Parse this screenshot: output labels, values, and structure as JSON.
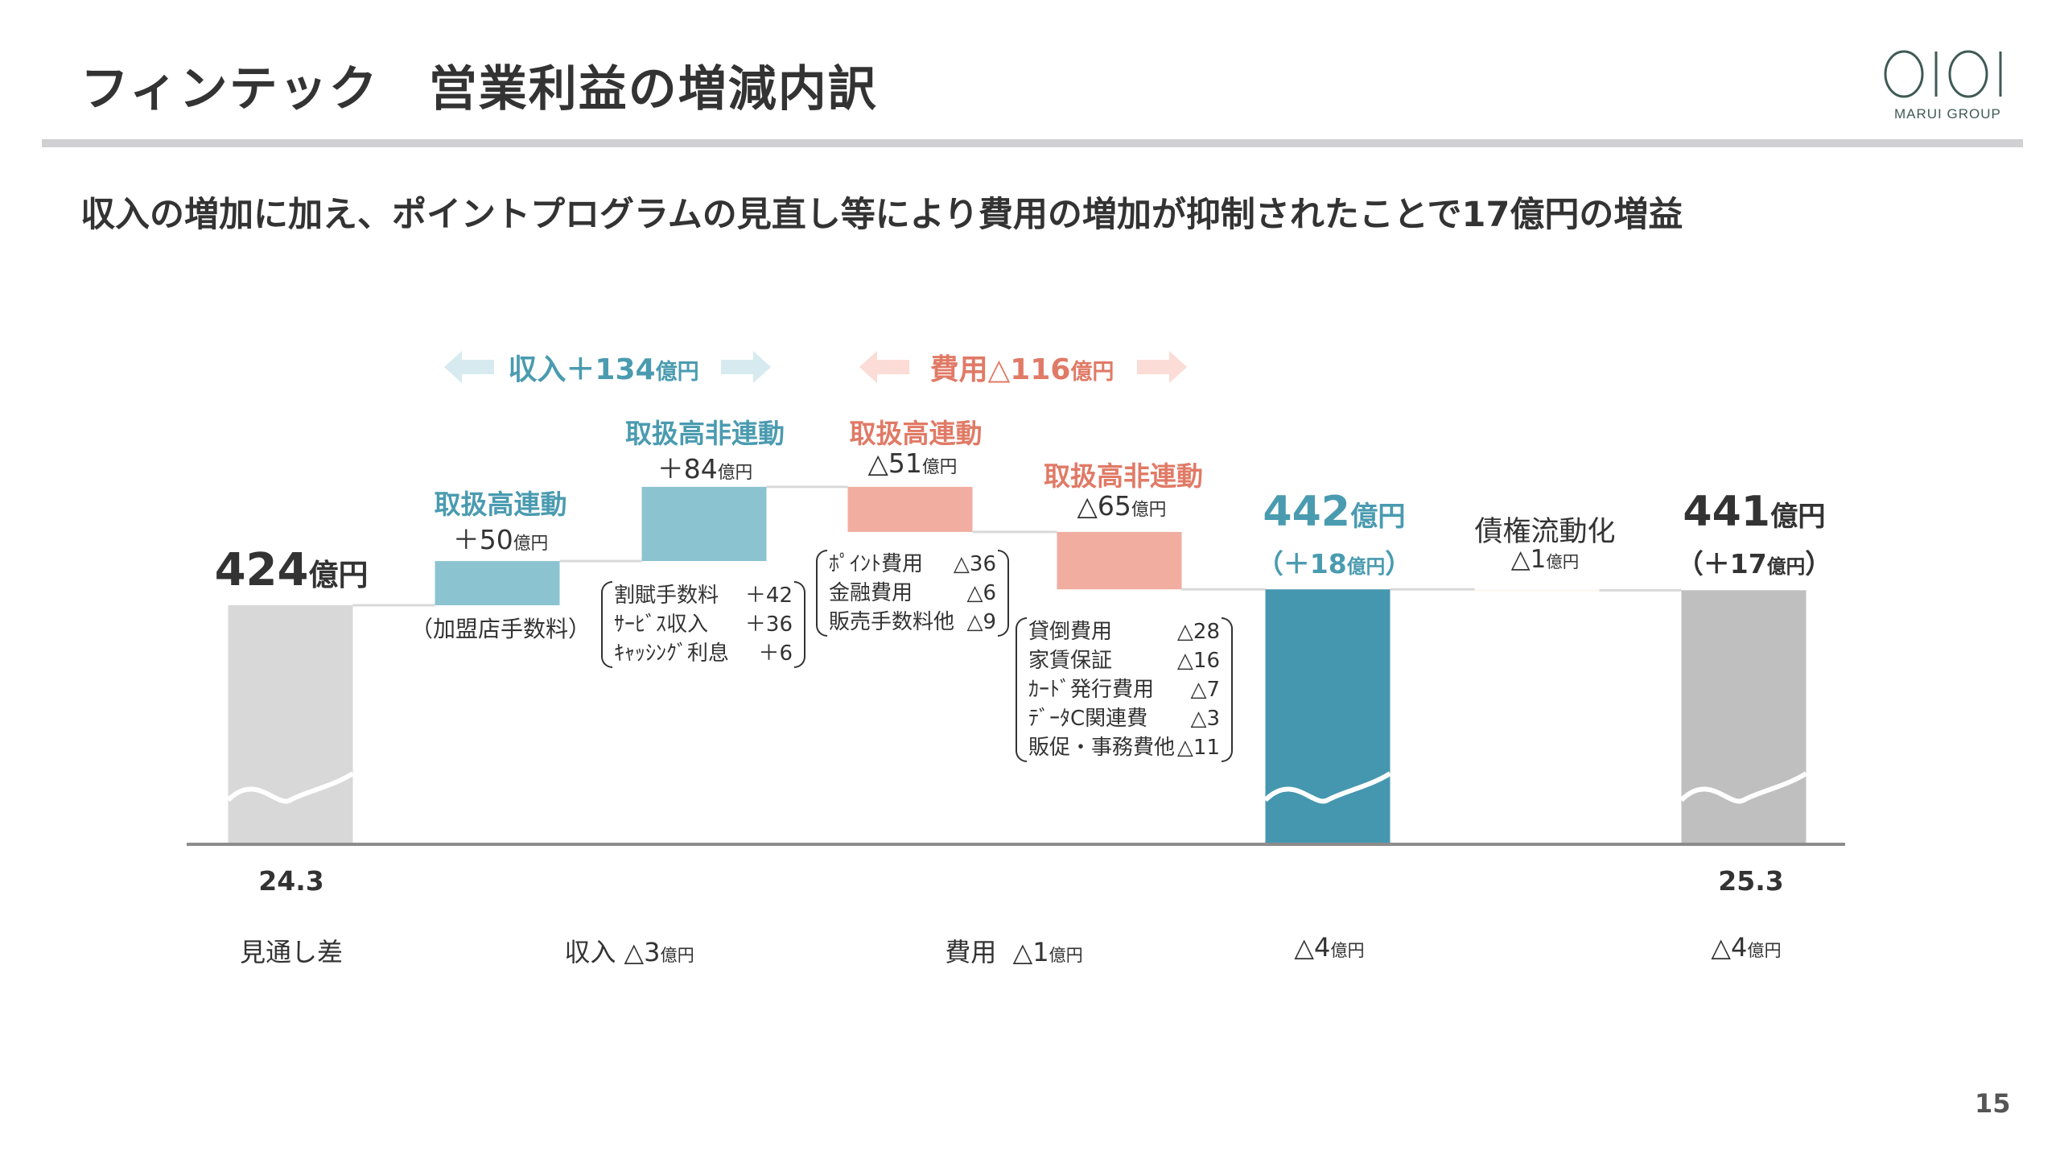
{
  "header": {
    "title": "フィンテック　営業利益の増減内訳",
    "logo_text": "MARUI GROUP",
    "logo_mark": "OIOI"
  },
  "subtitle": "収入の増加に加え、ポイントプログラムの見直し等により費用の増加が抑制されたことで17億円の増益",
  "page_number": "15",
  "colors": {
    "teal": "#4a9bb0",
    "teal_light": "#8cc3d1",
    "teal_dark": "#4597af",
    "salmon": "#f0ada0",
    "salmon_text": "#e07a66",
    "gray_start": "#d8d8d8",
    "gray_end": "#bfbfbf"
  },
  "groups": {
    "revenue": {
      "label": "収入＋134",
      "unit": "億円"
    },
    "cost": {
      "label": "費用△116",
      "unit": "億円"
    }
  },
  "chart_data": {
    "type": "waterfall",
    "unit": "億円",
    "axis_break": true,
    "bars": [
      {
        "name": "start",
        "kind": "total",
        "value": 424,
        "value_text": "424",
        "unit": "億円",
        "below": "24.3",
        "footer_label": "見通し差",
        "footer_value": ""
      },
      {
        "name": "rev-linked",
        "kind": "increase",
        "delta": 50,
        "category": "取扱高連動",
        "value_text": "＋50",
        "unit": "億円",
        "note": "（加盟店手数料）",
        "footer_label": "収入",
        "footer_value": "△3"
      },
      {
        "name": "rev-nonlinked",
        "kind": "increase",
        "delta": 84,
        "category": "取扱高非連動",
        "value_text": "＋84",
        "unit": "億円",
        "breakdown": [
          {
            "item": "割賦手数料",
            "value": "＋42"
          },
          {
            "item": "ｻｰﾋﾞｽ収入",
            "value": "＋36"
          },
          {
            "item": "ｷｬｯｼﾝｸﾞ利息",
            "value": "＋6"
          }
        ]
      },
      {
        "name": "cost-linked",
        "kind": "decrease",
        "delta": -51,
        "category": "取扱高連動",
        "value_text": "△51",
        "unit": "億円",
        "footer_label": "費用",
        "footer_value": "△1",
        "breakdown": [
          {
            "item": "ﾎﾟｲﾝﾄ費用",
            "value": "△36"
          },
          {
            "item": "金融費用",
            "value": "△6"
          },
          {
            "item": "販売手数料他",
            "value": "△9"
          }
        ]
      },
      {
        "name": "cost-nonlinked",
        "kind": "decrease",
        "delta": -65,
        "category": "取扱高非連動",
        "value_text": "△65",
        "unit": "億円",
        "breakdown": [
          {
            "item": "貸倒費用",
            "value": "△28"
          },
          {
            "item": "家賃保証",
            "value": "△16"
          },
          {
            "item": "ｶｰﾄﾞ発行費用",
            "value": "△7"
          },
          {
            "item": "ﾃﾞｰﾀC関連費",
            "value": "△3"
          },
          {
            "item": "販促・事務費他",
            "value": "△11"
          }
        ]
      },
      {
        "name": "subtotal",
        "kind": "total",
        "value": 442,
        "value_text": "442",
        "unit": "億円",
        "change_text": "（＋18",
        "change_close": "）",
        "footer_label": "",
        "footer_value": "△4"
      },
      {
        "name": "securitization",
        "kind": "decrease",
        "delta": -1,
        "category": "債権流動化",
        "value_text": "△1",
        "unit": "億円"
      },
      {
        "name": "end",
        "kind": "total",
        "value": 441,
        "value_text": "441",
        "unit": "億円",
        "change_text": "（＋17",
        "change_close": "）",
        "below": "25.3",
        "footer_label": "",
        "footer_value": "△4"
      }
    ]
  }
}
